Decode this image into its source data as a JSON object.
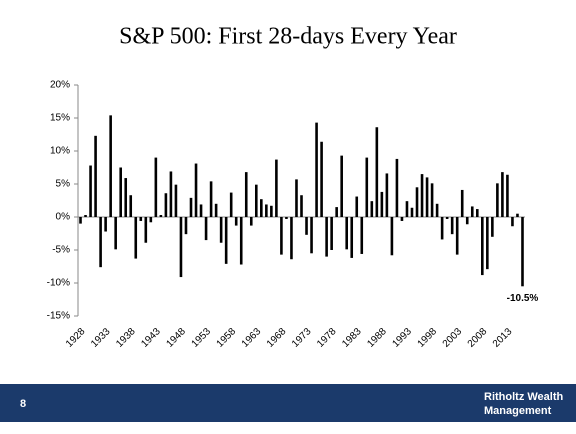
{
  "chart_data": {
    "type": "bar",
    "title": "S&P 500: First 28-days Every Year",
    "categories": [
      "1928",
      null,
      null,
      null,
      null,
      "1933",
      null,
      null,
      null,
      null,
      "1938",
      null,
      null,
      null,
      null,
      "1943",
      null,
      null,
      null,
      null,
      "1948",
      null,
      null,
      null,
      null,
      "1953",
      null,
      null,
      null,
      null,
      "1958",
      null,
      null,
      null,
      null,
      "1963",
      null,
      null,
      null,
      null,
      "1968",
      null,
      null,
      null,
      null,
      "1973",
      null,
      null,
      null,
      null,
      "1978",
      null,
      null,
      null,
      null,
      "1983",
      null,
      null,
      null,
      null,
      "1988",
      null,
      null,
      null,
      null,
      "1993",
      null,
      null,
      null,
      null,
      "1998",
      null,
      null,
      null,
      null,
      "2003",
      null,
      null,
      null,
      null,
      "2008",
      null,
      null,
      null,
      null,
      "2013",
      null,
      null,
      null
    ],
    "values": [
      -1.0,
      0.3,
      7.8,
      12.3,
      -7.6,
      -2.2,
      15.4,
      -4.9,
      7.5,
      5.9,
      3.3,
      -6.3,
      -0.6,
      -3.9,
      -0.8,
      9.0,
      0.3,
      3.6,
      6.9,
      4.9,
      -9.1,
      -2.6,
      2.9,
      8.1,
      1.9,
      -3.5,
      5.4,
      2.0,
      -3.9,
      -7.1,
      3.7,
      -1.3,
      -7.2,
      6.8,
      -1.3,
      4.9,
      2.7,
      1.9,
      1.7,
      8.7,
      -5.7,
      -0.3,
      -6.4,
      5.7,
      3.3,
      -2.7,
      -5.5,
      14.3,
      11.4,
      -6.0,
      -5.0,
      1.5,
      9.3,
      -4.9,
      -6.2,
      3.1,
      -5.6,
      9.0,
      2.4,
      13.6,
      3.8,
      6.6,
      -5.8,
      8.8,
      -0.6,
      2.4,
      1.4,
      4.5,
      6.5,
      6.0,
      5.1,
      2.0,
      -3.4,
      -0.3,
      -2.6,
      -5.7,
      4.1,
      -1.1,
      1.6,
      1.2,
      -8.8,
      -7.9,
      -3.0,
      5.1,
      6.8,
      6.4,
      -1.4,
      0.5,
      -10.5
    ],
    "value_labels": [
      null,
      null,
      null,
      null,
      null,
      null,
      null,
      null,
      null,
      null,
      null,
      null,
      null,
      null,
      null,
      null,
      null,
      null,
      null,
      null,
      null,
      null,
      null,
      null,
      null,
      null,
      null,
      null,
      null,
      null,
      null,
      null,
      null,
      null,
      null,
      null,
      null,
      null,
      null,
      null,
      null,
      null,
      null,
      null,
      null,
      null,
      null,
      null,
      null,
      null,
      null,
      null,
      null,
      null,
      null,
      null,
      null,
      null,
      null,
      null,
      null,
      null,
      null,
      null,
      null,
      null,
      null,
      null,
      null,
      null,
      null,
      null,
      null,
      null,
      null,
      null,
      null,
      null,
      null,
      null,
      null,
      null,
      null,
      null,
      null,
      null,
      null,
      null,
      "-10.5%"
    ],
    "color": "#000000",
    "ylim": [
      -15,
      20
    ],
    "yticks": [
      {
        "value": -15,
        "label": "-15%"
      },
      {
        "value": -10,
        "label": "-10%"
      },
      {
        "value": -5,
        "label": "-5%"
      },
      {
        "value": 0,
        "label": "0%"
      },
      {
        "value": 5,
        "label": "5%"
      },
      {
        "value": 10,
        "label": "10%"
      },
      {
        "value": 15,
        "label": "15%"
      },
      {
        "value": 20,
        "label": "20%"
      }
    ],
    "grid": false
  },
  "footer": {
    "page_number": "8",
    "brand": [
      "Ritholtz Wealth",
      "Management"
    ]
  }
}
